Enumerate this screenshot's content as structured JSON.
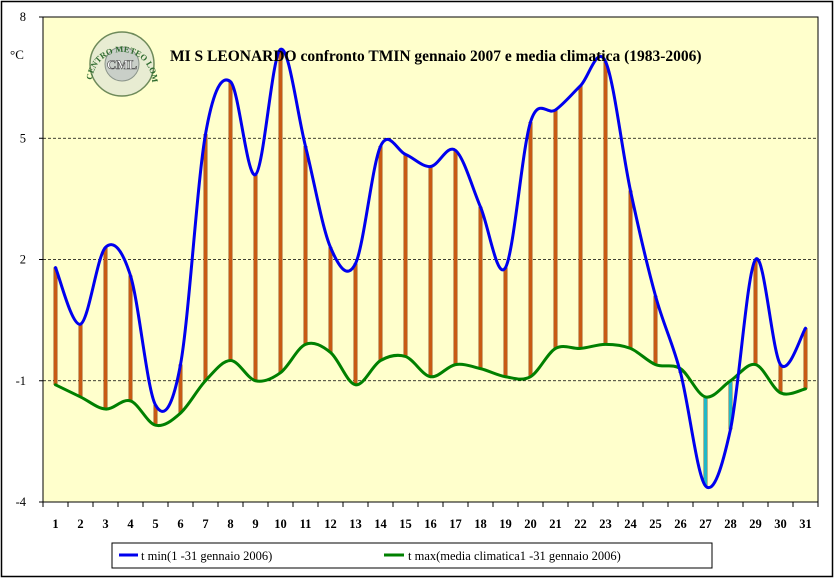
{
  "chart_data": {
    "type": "line",
    "title": "MI S LEONARDO confronto TMIN gennaio 2007 e media climatica (1983-2006)",
    "ylabel": "°C",
    "xlabel": "",
    "ylim": [
      -4,
      8
    ],
    "yticks": [
      -4,
      -1,
      2,
      5,
      8
    ],
    "ytick_labels": [
      "-4",
      "-1",
      "2",
      "5",
      "8"
    ],
    "categories": [
      "1",
      "2",
      "3",
      "4",
      "5",
      "6",
      "7",
      "8",
      "9",
      "10",
      "11",
      "12",
      "13",
      "14",
      "15",
      "16",
      "17",
      "18",
      "19",
      "20",
      "21",
      "22",
      "23",
      "24",
      "25",
      "26",
      "27",
      "28",
      "29",
      "30",
      "31"
    ],
    "grid": "horizontal-dashed",
    "legend_position": "bottom",
    "series": [
      {
        "name": "t min(1 -31 gennaio 2006)",
        "color": "#0000ee",
        "values": [
          1.8,
          0.4,
          2.3,
          1.6,
          -1.6,
          -0.6,
          5.1,
          6.4,
          4.1,
          7.2,
          4.8,
          2.3,
          1.9,
          4.8,
          4.6,
          4.3,
          4.7,
          3.3,
          1.8,
          5.4,
          5.7,
          6.3,
          6.9,
          3.7,
          1.1,
          -0.8,
          -3.6,
          -2.2,
          2.0,
          -0.6,
          0.3
        ]
      },
      {
        "name": "t max(media climatica1 -31 gennaio 2006)",
        "color": "#008000",
        "values": [
          -1.1,
          -1.4,
          -1.7,
          -1.5,
          -2.1,
          -1.8,
          -1.0,
          -0.5,
          -1.0,
          -0.8,
          -0.1,
          -0.3,
          -1.1,
          -0.5,
          -0.4,
          -0.9,
          -0.6,
          -0.7,
          -0.9,
          -0.9,
          -0.2,
          -0.2,
          -0.1,
          -0.2,
          -0.6,
          -0.7,
          -1.4,
          -1.0,
          -0.6,
          -1.3,
          -1.2
        ]
      }
    ],
    "bar_colors": {
      "above": "#c85a14",
      "below": "#20b8c8"
    },
    "logo": {
      "text": "CENTRO METEO LOMBARDO",
      "abbr": "CML"
    }
  }
}
